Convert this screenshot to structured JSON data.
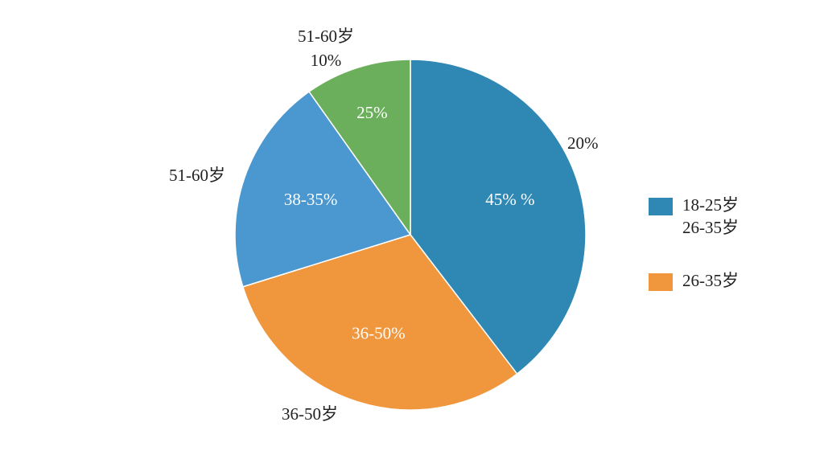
{
  "chart_data": {
    "type": "pie",
    "values": [
      39.6,
      30.6,
      20,
      9.8
    ],
    "colors": [
      "#2f87b4",
      "#f0963c",
      "#4b97cf",
      "#6baf5c"
    ],
    "inner_labels": [
      "45% %",
      "36-50%",
      "38-35%",
      "25%"
    ],
    "outer_labels": [
      [
        "20%"
      ],
      [
        "36-50岁"
      ],
      [
        "51-60岁"
      ],
      [
        "51-60岁",
        "10%"
      ]
    ],
    "legend": [
      {
        "name": [
          "18-25岁",
          "26-35岁"
        ],
        "color": "#2f87b4"
      },
      {
        "name": [
          "26-35岁"
        ],
        "color": "#f0963c"
      }
    ]
  }
}
